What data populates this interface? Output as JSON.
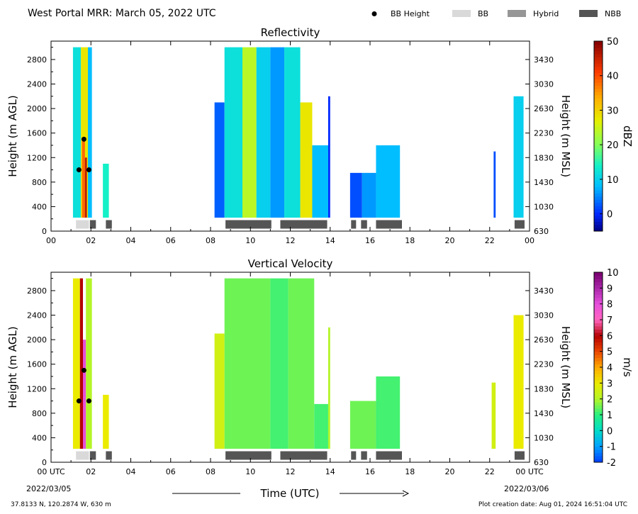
{
  "header": {
    "title": "West Portal MRR:  March 05, 2022 UTC",
    "legend": [
      {
        "label": "BB Height",
        "kind": "dot",
        "color": "#000000"
      },
      {
        "label": "BB",
        "kind": "bar",
        "color": "#d9d9d9"
      },
      {
        "label": "Hybrid",
        "kind": "bar",
        "color": "#969696"
      },
      {
        "label": "NBB",
        "kind": "bar",
        "color": "#555555"
      }
    ]
  },
  "footer": {
    "location": "37.8133 N, 120.2874 W, 630 m",
    "creation": "Plot creation date: Aug 01, 2024 16:51:04 UTC",
    "xlabel": "Time (UTC)",
    "start_date": "2022/03/05",
    "end_date": "2022/03/06"
  },
  "chart_data": [
    {
      "type": "heatmap",
      "title": "Reflectivity",
      "xlabel": "Time (UTC)",
      "ylabel": "Height (m AGL)",
      "ylabel_right": "Height (m MSL)",
      "x_ticks": [
        "00",
        "02",
        "04",
        "06",
        "08",
        "10",
        "12",
        "14",
        "16",
        "18",
        "20",
        "22",
        "00"
      ],
      "xlim": [
        0,
        24
      ],
      "y_ticks": [
        0,
        400,
        800,
        1200,
        1600,
        2000,
        2400,
        2800
      ],
      "y_ticks_right": [
        630,
        1030,
        1430,
        1830,
        2230,
        2630,
        3030,
        3430
      ],
      "ylim": [
        0,
        3100
      ],
      "colorbar": {
        "label": "dBZ",
        "range": [
          -5,
          50
        ],
        "ticks": [
          0,
          10,
          20,
          30,
          40,
          50
        ]
      },
      "bb_height": [
        {
          "t": 1.4,
          "h": 1000
        },
        {
          "t": 1.65,
          "h": 1500
        },
        {
          "t": 1.9,
          "h": 1000
        }
      ],
      "segments": [
        {
          "start": 1.25,
          "end": 1.9,
          "class": "BB"
        },
        {
          "start": 1.95,
          "end": 2.25,
          "class": "NBB"
        },
        {
          "start": 2.75,
          "end": 3.05,
          "class": "NBB"
        },
        {
          "start": 8.75,
          "end": 11.05,
          "class": "NBB"
        },
        {
          "start": 11.5,
          "end": 13.85,
          "class": "NBB"
        },
        {
          "start": 15.05,
          "end": 15.3,
          "class": "NBB"
        },
        {
          "start": 15.55,
          "end": 15.85,
          "class": "NBB"
        },
        {
          "start": 16.3,
          "end": 17.6,
          "class": "NBB"
        },
        {
          "start": 23.25,
          "end": 23.75,
          "class": "NBB"
        }
      ],
      "echoes": [
        {
          "t0": 1.1,
          "t1": 1.5,
          "top": 3000,
          "value": 12
        },
        {
          "t0": 1.5,
          "t1": 1.85,
          "top": 3000,
          "value": 28
        },
        {
          "t0": 1.55,
          "t1": 1.7,
          "top": 1500,
          "value": 38
        },
        {
          "t0": 1.7,
          "t1": 1.8,
          "top": 1200,
          "value": 46
        },
        {
          "t0": 1.85,
          "t1": 2.05,
          "top": 3000,
          "value": 8
        },
        {
          "t0": 2.6,
          "t1": 2.9,
          "top": 1100,
          "value": 14
        },
        {
          "t0": 8.2,
          "t1": 8.7,
          "top": 2100,
          "value": 3
        },
        {
          "t0": 8.7,
          "t1": 9.6,
          "top": 3000,
          "value": 12
        },
        {
          "t0": 9.6,
          "t1": 10.3,
          "top": 3000,
          "value": 24
        },
        {
          "t0": 10.3,
          "t1": 11.0,
          "top": 3000,
          "value": 10
        },
        {
          "t0": 11.0,
          "t1": 11.7,
          "top": 3000,
          "value": 6
        },
        {
          "t0": 11.7,
          "t1": 12.5,
          "top": 3000,
          "value": 12
        },
        {
          "t0": 12.5,
          "t1": 13.1,
          "top": 2100,
          "value": 28
        },
        {
          "t0": 13.1,
          "t1": 13.9,
          "top": 1400,
          "value": 8
        },
        {
          "t0": 13.9,
          "t1": 14.0,
          "top": 2200,
          "value": 0
        },
        {
          "t0": 15.0,
          "t1": 15.6,
          "top": 950,
          "value": 2
        },
        {
          "t0": 15.6,
          "t1": 16.3,
          "top": 950,
          "value": 6
        },
        {
          "t0": 16.3,
          "t1": 17.5,
          "top": 1400,
          "value": 8
        },
        {
          "t0": 22.2,
          "t1": 22.3,
          "top": 1300,
          "value": 2
        },
        {
          "t0": 23.2,
          "t1": 23.7,
          "top": 2200,
          "value": 10
        }
      ]
    },
    {
      "type": "heatmap",
      "title": "Vertical Velocity",
      "xlabel": "Time (UTC)",
      "ylabel": "Height (m AGL)",
      "ylabel_right": "Height (m MSL)",
      "x_ticks": [
        "00 UTC",
        "02",
        "04",
        "06",
        "08",
        "10",
        "12",
        "14",
        "16",
        "18",
        "20",
        "22",
        "00 UTC"
      ],
      "xlim": [
        0,
        24
      ],
      "y_ticks": [
        0,
        400,
        800,
        1200,
        1600,
        2000,
        2400,
        2800
      ],
      "y_ticks_right": [
        630,
        1030,
        1430,
        1830,
        2230,
        2630,
        3030,
        3430
      ],
      "ylim": [
        0,
        3100
      ],
      "colorbar": {
        "label": "m/s",
        "range": [
          -2,
          10
        ],
        "ticks": [
          -2,
          -1,
          0,
          1,
          2,
          3,
          4,
          5,
          6,
          7,
          8,
          9,
          10
        ]
      },
      "bb_height": [
        {
          "t": 1.4,
          "h": 1000
        },
        {
          "t": 1.65,
          "h": 1500
        },
        {
          "t": 1.9,
          "h": 1000
        }
      ],
      "segments": [
        {
          "start": 1.25,
          "end": 1.9,
          "class": "BB"
        },
        {
          "start": 1.95,
          "end": 2.25,
          "class": "NBB"
        },
        {
          "start": 2.75,
          "end": 3.05,
          "class": "NBB"
        },
        {
          "start": 8.75,
          "end": 11.05,
          "class": "NBB"
        },
        {
          "start": 11.5,
          "end": 13.85,
          "class": "NBB"
        },
        {
          "start": 15.05,
          "end": 15.3,
          "class": "NBB"
        },
        {
          "start": 15.55,
          "end": 15.85,
          "class": "NBB"
        },
        {
          "start": 16.3,
          "end": 17.6,
          "class": "NBB"
        },
        {
          "start": 23.25,
          "end": 23.75,
          "class": "NBB"
        }
      ],
      "echoes": [
        {
          "t0": 1.1,
          "t1": 1.45,
          "top": 3000,
          "value": 3
        },
        {
          "t0": 1.45,
          "t1": 1.6,
          "top": 3000,
          "value": 6
        },
        {
          "t0": 1.6,
          "t1": 1.75,
          "top": 2000,
          "value": 8
        },
        {
          "t0": 1.75,
          "t1": 2.05,
          "top": 3000,
          "value": 2
        },
        {
          "t0": 2.6,
          "t1": 2.9,
          "top": 1100,
          "value": 3
        },
        {
          "t0": 8.2,
          "t1": 8.7,
          "top": 2100,
          "value": 2.5
        },
        {
          "t0": 8.7,
          "t1": 11.0,
          "top": 3000,
          "value": 1.5
        },
        {
          "t0": 11.0,
          "t1": 11.9,
          "top": 3000,
          "value": 1.2
        },
        {
          "t0": 11.9,
          "t1": 13.2,
          "top": 3000,
          "value": 1.5
        },
        {
          "t0": 13.2,
          "t1": 13.9,
          "top": 950,
          "value": 1.2
        },
        {
          "t0": 13.9,
          "t1": 14.0,
          "top": 2200,
          "value": 2
        },
        {
          "t0": 15.0,
          "t1": 16.3,
          "top": 1000,
          "value": 1.5
        },
        {
          "t0": 16.3,
          "t1": 17.5,
          "top": 1400,
          "value": 1.2
        },
        {
          "t0": 22.1,
          "t1": 22.3,
          "top": 1300,
          "value": 2.5
        },
        {
          "t0": 23.2,
          "t1": 23.7,
          "top": 2400,
          "value": 3
        }
      ]
    }
  ]
}
